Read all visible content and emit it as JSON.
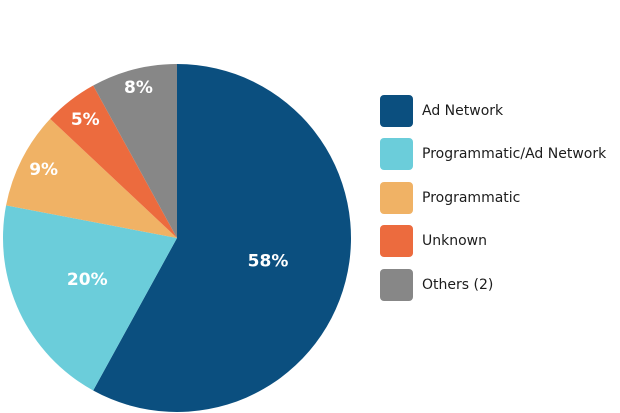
{
  "chart_data": {
    "type": "pie",
    "categories": [
      "Ad Network",
      "Programmatic/Ad Network",
      "Programmatic",
      "Unknown",
      "Others (2)"
    ],
    "values": [
      58,
      20,
      9,
      5,
      8
    ],
    "value_labels": [
      "58%",
      "20%",
      "9%",
      "5%",
      "8%"
    ],
    "colors": [
      "#0b4f7f",
      "#6bcdda",
      "#f0b265",
      "#ec6b3e",
      "#878787"
    ],
    "start_angle_deg": 0,
    "direction": "clockwise",
    "legend": {
      "position": "right",
      "entries": [
        "Ad Network",
        "Programmatic/Ad Network",
        "Programmatic",
        "Unknown",
        "Others (2)"
      ]
    },
    "title": ""
  }
}
